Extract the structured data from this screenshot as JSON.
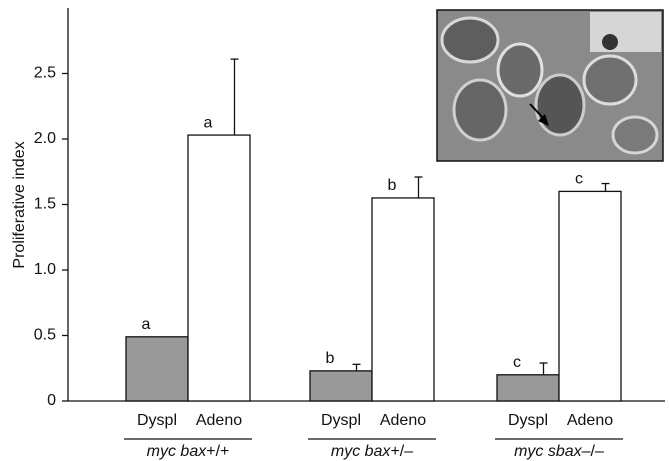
{
  "chart_data": {
    "type": "bar",
    "y_label": "Proliferative index",
    "categories": [
      "myc bax+/+",
      "myc bax+/–",
      "myc sbax–/–"
    ],
    "series": [
      {
        "name": "Dyspl",
        "color": "#999999",
        "values": [
          0.49,
          0.23,
          0.2
        ],
        "errors": [
          0,
          0.05,
          0.09
        ],
        "letters": [
          "a",
          "b",
          "c"
        ]
      },
      {
        "name": "Adeno",
        "color": "#ffffff",
        "values": [
          2.03,
          1.55,
          1.6
        ],
        "errors": [
          0.58,
          0.16,
          0.06
        ],
        "letters": [
          "a",
          "b",
          "c"
        ]
      }
    ],
    "ylim": [
      0,
      3
    ],
    "yticks": [
      0,
      0.5,
      {
        "value": 1,
        "label": "1.0"
      },
      1.5,
      {
        "value": 2,
        "label": "2.0"
      },
      2.5
    ],
    "grid": false
  }
}
